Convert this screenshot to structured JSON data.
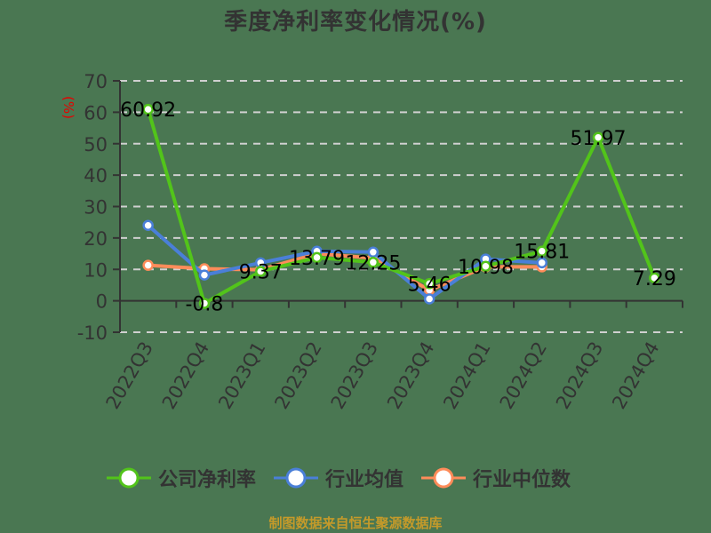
{
  "title": "季度净利率变化情况(%)",
  "footer": "制图数据来自恒生聚源数据库",
  "colors": {
    "background": "#4a7752",
    "company": "#52c41a",
    "industry_avg": "#4a7fd8",
    "industry_median": "#ff8c5a",
    "axis": "#333333",
    "grid": "#d0d0d0",
    "unit": "#e60000",
    "footer": "#c49a2a"
  },
  "chart_data": {
    "type": "line",
    "title": "季度净利率变化情况(%)",
    "xlabel": "",
    "ylabel": "(%)",
    "ylim": [
      -10,
      70
    ],
    "yticks": [
      -10,
      0,
      10,
      20,
      30,
      40,
      50,
      60,
      70
    ],
    "grid": true,
    "legend_position": "bottom",
    "categories": [
      "2022Q3",
      "2022Q4",
      "2023Q1",
      "2023Q2",
      "2023Q3",
      "2023Q4",
      "2024Q1",
      "2024Q2",
      "2024Q3",
      "2024Q4"
    ],
    "series": [
      {
        "name": "公司净利率",
        "color": "#52c41a",
        "values": [
          60.92,
          -0.8,
          9.37,
          13.79,
          12.25,
          5.46,
          10.98,
          15.81,
          51.97,
          7.29
        ],
        "labels": [
          "60.92",
          "-0.8",
          "9.37",
          "13.79",
          "12.25",
          "5.46",
          "10.98",
          "15.81",
          "51.97",
          "7.29"
        ]
      },
      {
        "name": "行业均值",
        "color": "#4a7fd8",
        "values": [
          24.0,
          8.2,
          12.1,
          15.8,
          15.5,
          0.6,
          13.3,
          12.1,
          null,
          null
        ]
      },
      {
        "name": "行业中位数",
        "color": "#ff8c5a",
        "values": [
          11.3,
          10.2,
          9.9,
          15.0,
          13.6,
          3.4,
          10.8,
          10.8,
          null,
          null
        ]
      }
    ]
  },
  "legend": [
    {
      "label": "公司净利率",
      "color": "#52c41a"
    },
    {
      "label": "行业均值",
      "color": "#4a7fd8"
    },
    {
      "label": "行业中位数",
      "color": "#ff8c5a"
    }
  ]
}
